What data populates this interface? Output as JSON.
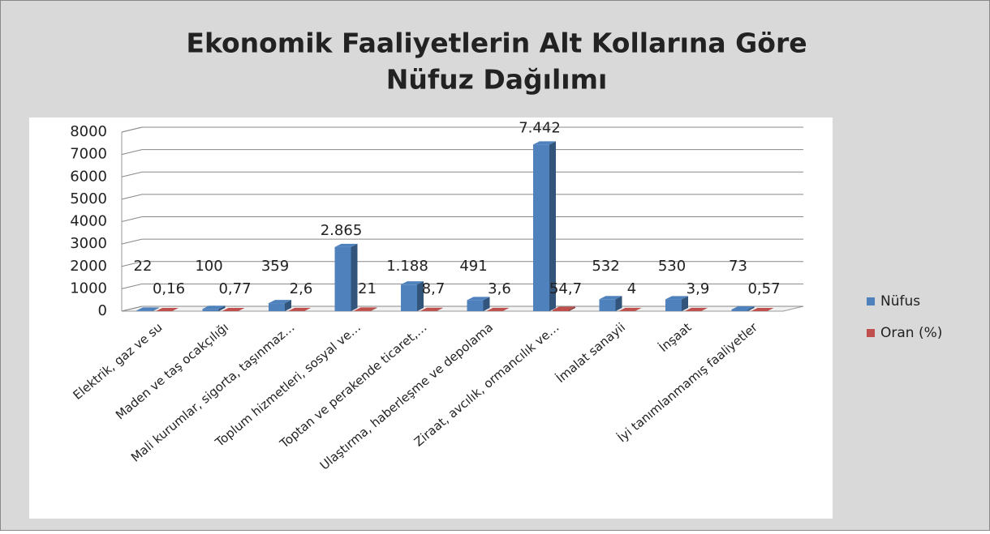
{
  "chart_data": {
    "type": "bar3d",
    "title": [
      "Ekonomik Faaliyetlerin Alt Kollarına Göre",
      "Nüfuz Dağılımı"
    ],
    "categories": [
      "Elektrik, gaz ve su",
      "Maden ve taş ocakçılığı",
      "Mali kurumlar, sigorta, taşınmaz…",
      "Toplum hizmetleri, sosyal ve…",
      "Toptan ve perakende ticaret,…",
      "Ulaştırma, haberleşme ve depolama",
      "Ziraat, avcılık, ormancılık ve…",
      "İmalat sanayii",
      "İnşaat",
      "İyi tanımlanmamış faaliyetler"
    ],
    "series": [
      {
        "name": "Nüfus",
        "color": "#4f81bd",
        "values": [
          22,
          100,
          359,
          2865,
          1188,
          491,
          7442,
          532,
          530,
          73
        ],
        "value_labels": [
          "22",
          "100",
          "359",
          "2.865",
          "1.188",
          "491",
          "7.442",
          "532",
          "530",
          "73"
        ]
      },
      {
        "name": "Oran (%)",
        "color": "#c0504d",
        "values": [
          0.16,
          0.77,
          2.6,
          21,
          8.7,
          3.6,
          54.7,
          4,
          3.9,
          0.57
        ],
        "value_labels": [
          "0,16",
          "0,77",
          "2,6",
          "21",
          "8,7",
          "3,6",
          "54,7",
          "4",
          "3,9",
          "0,57"
        ]
      }
    ],
    "ylim": [
      0,
      8000
    ],
    "yticks": [
      0,
      1000,
      2000,
      3000,
      4000,
      5000,
      6000,
      7000,
      8000
    ],
    "grid": true,
    "legend": "right"
  }
}
